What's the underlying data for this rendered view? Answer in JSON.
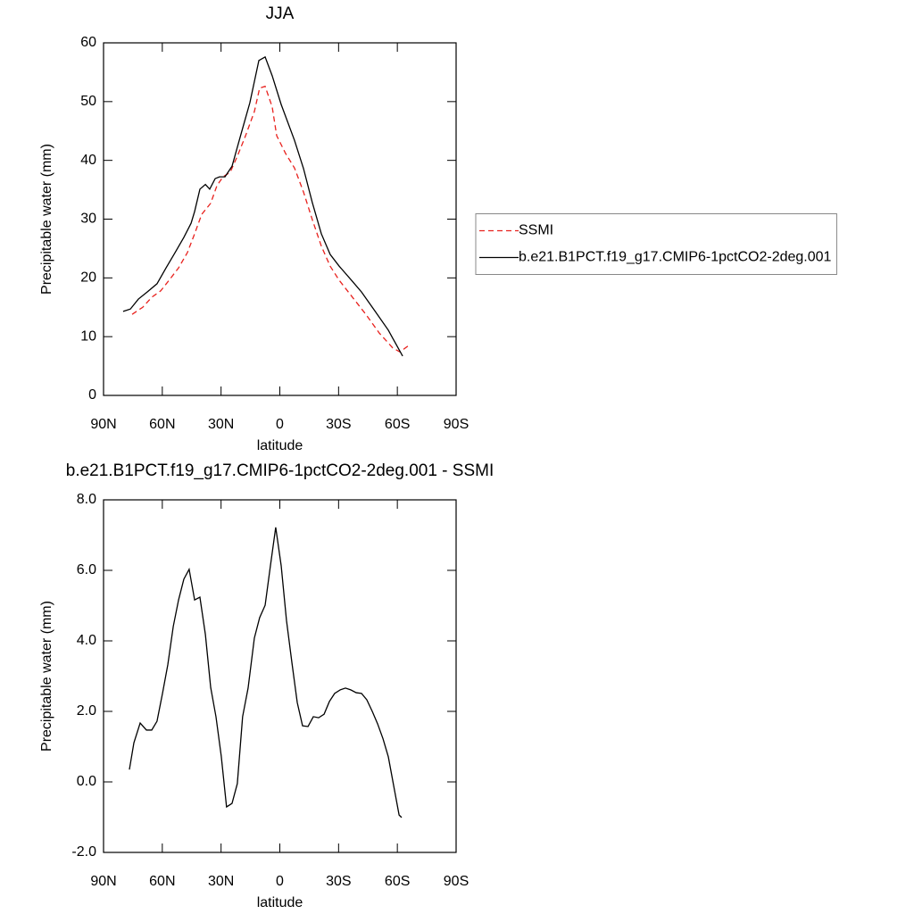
{
  "chart_data": [
    {
      "type": "line",
      "title": "JJA",
      "x_label": "latitude",
      "y_label": "Precipitable water (mm)",
      "xlim": [
        90,
        -90
      ],
      "xticks": [
        {
          "value": 90,
          "label": "90N"
        },
        {
          "value": 60,
          "label": "60N"
        },
        {
          "value": 30,
          "label": "30N"
        },
        0,
        {
          "value": -30,
          "label": "30S"
        },
        {
          "value": -60,
          "label": "60S"
        },
        {
          "value": -90,
          "label": "90S"
        }
      ],
      "ylim": [
        0,
        60
      ],
      "yticks": [
        0,
        10,
        20,
        30,
        40,
        50,
        60
      ],
      "legend": "right",
      "series": [
        {
          "name": "SSMI",
          "color": "#e8211d",
          "linestyle": "dashed",
          "x": [
            75.4,
            70,
            65.4,
            60.8,
            56.3,
            51.7,
            47.2,
            43.5,
            39.9,
            35.3,
            32.1,
            29.0,
            25.3,
            21.7,
            17.6,
            13.0,
            10.3,
            7.5,
            3.9,
            1.6,
            -2.9,
            -7.5,
            -12.1,
            -16.6,
            -21.2,
            -25.7,
            -30.3,
            -37.1,
            -43.9,
            -50.8,
            -57.6,
            -61.3,
            -65.4
          ],
          "values": [
            13.8,
            15.0,
            16.7,
            17.8,
            19.7,
            21.7,
            24.3,
            27.5,
            30.8,
            32.7,
            35.7,
            37.2,
            38.0,
            40.7,
            44.1,
            48.3,
            52.3,
            52.6,
            49.1,
            44.2,
            41.2,
            38.7,
            34.6,
            29.9,
            25.4,
            22.0,
            19.6,
            16.7,
            13.8,
            10.6,
            8.1,
            7.4,
            8.4
          ]
        },
        {
          "name": "b.e21.B1PCT.f19_g17.CMIP6-1pctCO2-2deg.001",
          "color": "#000000",
          "linestyle": "solid",
          "x": [
            80,
            76.3,
            72.2,
            67.7,
            62.7,
            58.1,
            53.5,
            49.0,
            45.3,
            43.5,
            40.8,
            38.0,
            35.8,
            33.0,
            30.8,
            28.0,
            24.4,
            19.8,
            15.3,
            10.7,
            7.5,
            3.9,
            -0.7,
            -7.5,
            -12.1,
            -16.6,
            -21.2,
            -25.7,
            -30.3,
            -37.1,
            -41.7,
            -48.5,
            -55.4,
            -57.7,
            -62.7
          ],
          "values": [
            14.3,
            14.7,
            16.4,
            17.6,
            19.0,
            21.7,
            24.3,
            26.9,
            29.3,
            31.3,
            35.1,
            35.9,
            35.1,
            36.9,
            37.2,
            37.2,
            39.0,
            44.5,
            49.8,
            57.0,
            57.6,
            54.4,
            49.5,
            43.4,
            38.6,
            32.8,
            27.5,
            24.0,
            22.0,
            19.4,
            17.6,
            14.4,
            11.1,
            9.7,
            6.7
          ]
        }
      ]
    },
    {
      "type": "line",
      "title": "b.e21.B1PCT.f19_g17.CMIP6-1pctCO2-2deg.001 - SSMI",
      "x_label": "latitude",
      "y_label": "Precipitable water (mm)",
      "xlim": [
        90,
        -90
      ],
      "xticks": [
        {
          "value": 90,
          "label": "90N"
        },
        {
          "value": 60,
          "label": "60N"
        },
        {
          "value": 30,
          "label": "30N"
        },
        0,
        {
          "value": -30,
          "label": "30S"
        },
        {
          "value": -60,
          "label": "60S"
        },
        {
          "value": -90,
          "label": "90S"
        }
      ],
      "ylim": [
        -2,
        8
      ],
      "yticks": [
        {
          "value": -2,
          "label": "-2.0"
        },
        {
          "value": 0,
          "label": "0.0"
        },
        {
          "value": 2,
          "label": "2.0"
        },
        {
          "value": 4,
          "label": "4.0"
        },
        {
          "value": 6,
          "label": "6.0"
        },
        {
          "value": 8,
          "label": "8.0"
        }
      ],
      "color": "#000000",
      "x": [
        76.8,
        74.5,
        71.3,
        68.1,
        65.4,
        62.7,
        59.9,
        57.2,
        54.4,
        51.7,
        49.0,
        46.3,
        43.5,
        40.8,
        38.0,
        35.3,
        32.6,
        29.9,
        27.2,
        24.4,
        21.7,
        19.0,
        16.2,
        13.0,
        10.3,
        7.5,
        4.8,
        2.1,
        -0.7,
        -3.4,
        -6.2,
        -8.9,
        -11.6,
        -14.4,
        -17.1,
        -19.8,
        -22.6,
        -25.3,
        -28.0,
        -30.8,
        -33.5,
        -36.2,
        -39.0,
        -41.7,
        -44.4,
        -47.2,
        -49.9,
        -52.7,
        -55.4,
        -58.1,
        -60.9,
        -62.2
      ],
      "values": [
        0.35,
        1.11,
        1.67,
        1.47,
        1.47,
        1.72,
        2.51,
        3.32,
        4.41,
        5.16,
        5.75,
        6.03,
        5.16,
        5.24,
        4.18,
        2.68,
        1.85,
        0.73,
        -0.71,
        -0.61,
        -0.05,
        1.85,
        2.66,
        4.08,
        4.66,
        5.01,
        6.13,
        7.22,
        6.13,
        4.58,
        3.37,
        2.25,
        1.59,
        1.57,
        1.85,
        1.82,
        1.92,
        2.28,
        2.51,
        2.61,
        2.66,
        2.61,
        2.53,
        2.51,
        2.33,
        2.0,
        1.65,
        1.22,
        0.71,
        -0.1,
        -0.94,
        -1.01
      ]
    }
  ]
}
